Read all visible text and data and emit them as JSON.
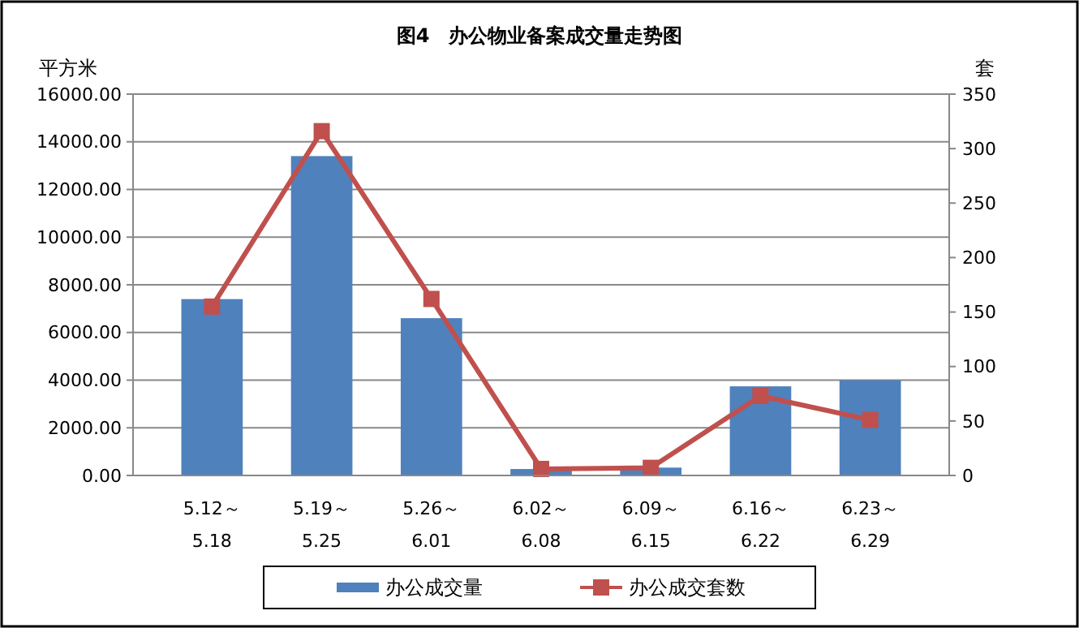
{
  "chart_data": {
    "type": "bar",
    "title": "图4　办公物业备案成交量走势图",
    "ylabel": "平方米",
    "y2label": "套",
    "categories": [
      "5.12～\n5.18",
      "5.19～\n5.25",
      "5.26～\n6.01",
      "6.02～\n6.08",
      "6.09～\n6.15",
      "6.16～\n6.22",
      "6.23～\n6.29"
    ],
    "series": [
      {
        "name": "办公成交量",
        "color": "#4f81bd",
        "values": [
          7400,
          13400,
          6600,
          270,
          330,
          3740,
          4000
        ]
      },
      {
        "name": "办公成交套数",
        "type": "line",
        "axis": "y2",
        "color": "#c0504d",
        "marker": "square",
        "values": [
          155,
          316,
          162,
          6,
          7,
          73,
          51
        ]
      }
    ],
    "ylim": [
      0,
      16000
    ],
    "yticks": [
      {
        "value": 0,
        "label": "0.00"
      },
      {
        "value": 2000,
        "label": "2000.00"
      },
      {
        "value": 4000,
        "label": "4000.00"
      },
      {
        "value": 6000,
        "label": "6000.00"
      },
      {
        "value": 8000,
        "label": "8000.00"
      },
      {
        "value": 10000,
        "label": "10000.00"
      },
      {
        "value": 12000,
        "label": "12000.00"
      },
      {
        "value": 14000,
        "label": "14000.00"
      },
      {
        "value": 16000,
        "label": "16000.00"
      }
    ],
    "y2lim": [
      0,
      350
    ],
    "y2ticks": [
      0,
      50,
      100,
      150,
      200,
      250,
      300,
      350
    ],
    "grid": "y",
    "legend": "bottom"
  }
}
